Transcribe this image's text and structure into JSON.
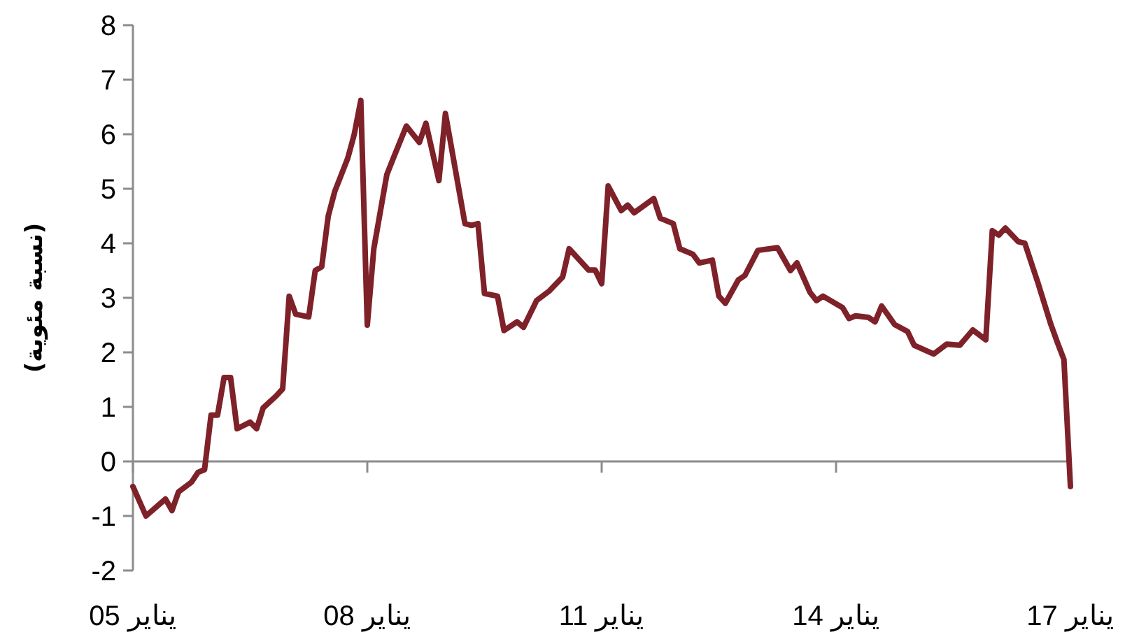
{
  "chart_data": {
    "type": "line",
    "ylabel": "(نسبة مئوية)",
    "x": [
      "2005-01",
      "2005-03",
      "2005-06",
      "2005-07",
      "2005-08",
      "2005-10",
      "2005-11",
      "2005-12",
      "2006-01",
      "2006-02",
      "2006-03",
      "2006-04",
      "2006-05",
      "2006-07",
      "2006-08",
      "2006-09",
      "2006-11",
      "2006-12",
      "2007-01",
      "2007-02",
      "2007-04",
      "2007-05",
      "2007-06",
      "2007-07",
      "2007-08",
      "2007-10",
      "2007-11",
      "2007-12",
      "2008-01",
      "2008-02",
      "2008-04",
      "2008-05",
      "2008-07",
      "2008-09",
      "2008-10",
      "2008-12",
      "2009-01",
      "2009-04",
      "2009-05",
      "2009-06",
      "2009-07",
      "2009-09",
      "2009-10",
      "2009-12",
      "2010-01",
      "2010-03",
      "2010-05",
      "2010-07",
      "2010-08",
      "2010-11",
      "2010-12",
      "2011-01",
      "2011-02",
      "2011-04",
      "2011-05",
      "2011-06",
      "2011-09",
      "2011-10",
      "2011-12",
      "2012-01",
      "2012-03",
      "2012-04",
      "2012-06",
      "2012-07",
      "2012-08",
      "2012-10",
      "2012-11",
      "2013-01",
      "2013-04",
      "2013-06",
      "2013-07",
      "2013-09",
      "2013-10",
      "2013-11",
      "2014-02",
      "2014-03",
      "2014-04",
      "2014-06",
      "2014-07",
      "2014-08",
      "2014-10",
      "2014-12",
      "2015-01",
      "2015-04",
      "2015-06",
      "2015-08",
      "2015-10",
      "2015-12",
      "2016-01",
      "2016-02",
      "2016-03",
      "2016-05",
      "2016-06",
      "2016-08",
      "2016-10",
      "2016-11",
      "2016-12",
      "2017-01"
    ],
    "values": [
      -0.46,
      -1.0,
      -0.69,
      -0.9,
      -0.56,
      -0.38,
      -0.2,
      -0.15,
      0.85,
      0.85,
      1.54,
      1.54,
      0.6,
      0.72,
      0.6,
      0.98,
      1.2,
      1.33,
      3.03,
      2.7,
      2.65,
      3.5,
      3.57,
      4.5,
      4.95,
      5.56,
      6.0,
      6.62,
      2.5,
      3.9,
      5.26,
      5.56,
      6.15,
      5.85,
      6.2,
      5.15,
      6.38,
      4.36,
      4.33,
      4.36,
      3.08,
      3.03,
      2.4,
      2.56,
      2.46,
      2.95,
      3.13,
      3.38,
      3.9,
      3.51,
      3.51,
      3.26,
      5.05,
      4.6,
      4.7,
      4.56,
      4.82,
      4.46,
      4.36,
      3.9,
      3.8,
      3.64,
      3.69,
      3.03,
      2.9,
      3.33,
      3.41,
      3.87,
      3.92,
      3.5,
      3.64,
      3.1,
      2.95,
      3.03,
      2.82,
      2.62,
      2.67,
      2.64,
      2.56,
      2.85,
      2.51,
      2.38,
      2.13,
      1.97,
      2.15,
      2.13,
      2.41,
      2.23,
      4.23,
      4.15,
      4.28,
      4.03,
      4.0,
      3.28,
      2.51,
      2.18,
      1.87,
      -0.46
    ],
    "color": "#7e2129",
    "xlim": [
      "2005-01",
      "2017-01"
    ],
    "xticks": [
      {
        "value": "2005-01",
        "label": "يناير 05"
      },
      {
        "value": "2008-01",
        "label": "يناير 08"
      },
      {
        "value": "2011-01",
        "label": "يناير 11"
      },
      {
        "value": "2014-01",
        "label": "يناير 14"
      },
      {
        "value": "2017-01",
        "label": "يناير 17"
      }
    ],
    "ylim": [
      -2,
      8
    ],
    "yticks": [
      -2,
      -1,
      0,
      1,
      2,
      3,
      4,
      5,
      6,
      7,
      8
    ]
  }
}
